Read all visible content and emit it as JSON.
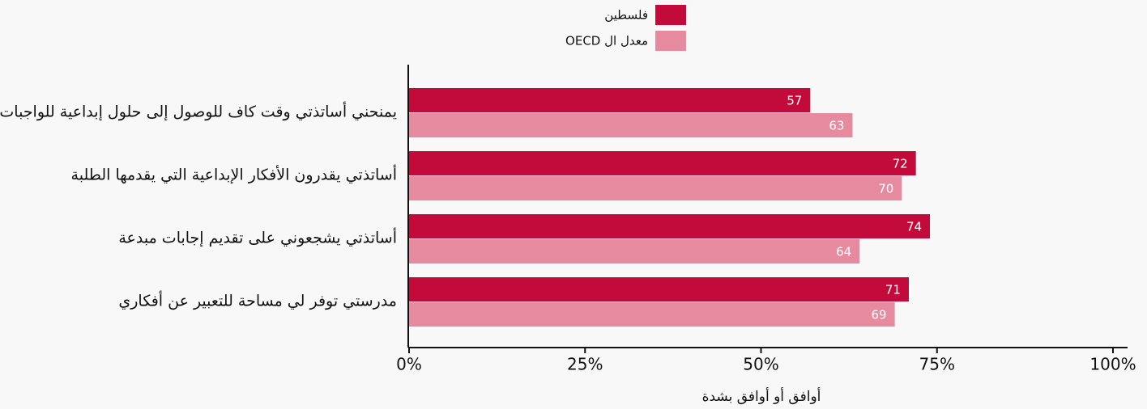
{
  "chart_data": {
    "type": "bar",
    "orientation": "horizontal",
    "categories": [
      "يمنحني أساتذتي وقت كاف للوصول إلى حلول إبداعية للواجبات",
      "أساتذتي يقدرون الأفكار الإبداعية التي يقدمها الطلبة",
      "أساتذتي يشجعوني على تقديم إجابات مبدعة",
      "مدرستي توفر لي مساحة للتعبير عن أفكاري"
    ],
    "series": [
      {
        "name": "فلسطين",
        "color": "#c20b3b",
        "values": [
          57,
          72,
          74,
          71
        ]
      },
      {
        "name": "معدل ال OECD",
        "color": "#e58a9f",
        "values": [
          63,
          70,
          64,
          69
        ]
      }
    ],
    "xlim": [
      0,
      100
    ],
    "xticks": [
      {
        "value": 0,
        "label": "0%"
      },
      {
        "value": 25,
        "label": "25%"
      },
      {
        "value": 50,
        "label": "50%"
      },
      {
        "value": 75,
        "label": "75%"
      },
      {
        "value": 100,
        "label": "100%"
      }
    ],
    "xlabel": "أوافق أو أوافق بشدة",
    "legend": "top"
  }
}
